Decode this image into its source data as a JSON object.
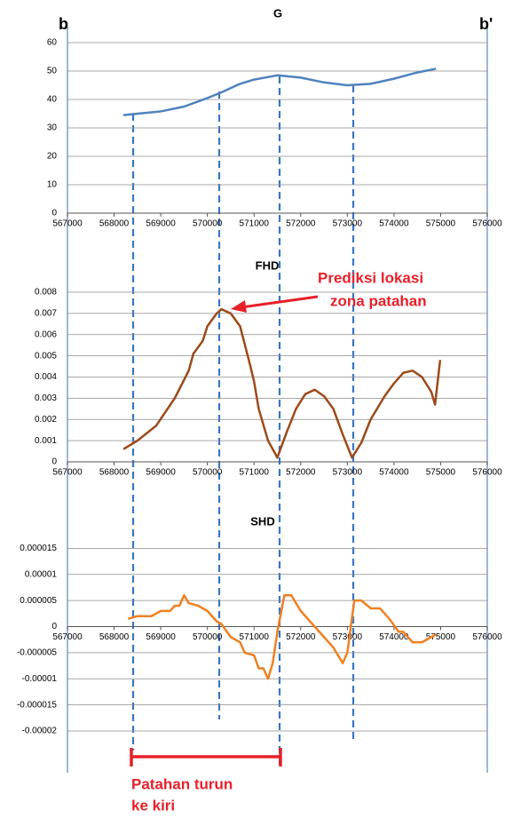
{
  "chart_data": [
    {
      "type": "line",
      "title": "G",
      "color": "#4f81bd",
      "x": [
        568200,
        568500,
        569000,
        569500,
        570000,
        570300,
        570700,
        571000,
        571500,
        572000,
        572500,
        573000,
        573500,
        574000,
        574500,
        574900
      ],
      "values": [
        34.5,
        35,
        35.8,
        37.5,
        40.5,
        42.5,
        45.5,
        47,
        48.5,
        47.7,
        46,
        45,
        45.5,
        47.3,
        49.5,
        50.8
      ],
      "xlim": [
        567000,
        576000
      ],
      "xticks": [
        567000,
        568000,
        569000,
        570000,
        571000,
        572000,
        573000,
        574000,
        575000,
        576000
      ],
      "ylim": [
        0,
        60
      ],
      "yticks": [
        0,
        10,
        20,
        30,
        40,
        50,
        60
      ],
      "grid": true
    },
    {
      "type": "line",
      "title": "FHD",
      "color": "#9c4a1a",
      "x": [
        568200,
        568500,
        568900,
        569300,
        569600,
        569700,
        569900,
        570000,
        570200,
        570300,
        570500,
        570700,
        570900,
        571000,
        571100,
        571300,
        571500,
        571700,
        571900,
        572100,
        572300,
        572500,
        572700,
        572900,
        573100,
        573300,
        573500,
        573800,
        574000,
        574200,
        574400,
        574600,
        574800,
        574880,
        574990
      ],
      "values": [
        0.0006,
        0.001,
        0.0017,
        0.003,
        0.0043,
        0.0051,
        0.0057,
        0.0064,
        0.007,
        0.0072,
        0.007,
        0.0064,
        0.0047,
        0.0038,
        0.0025,
        0.001,
        0.0002,
        0.0014,
        0.0025,
        0.0032,
        0.0034,
        0.0031,
        0.0025,
        0.0013,
        0.0002,
        0.0009,
        0.002,
        0.0031,
        0.0037,
        0.0042,
        0.0043,
        0.004,
        0.0033,
        0.0027,
        0.0048
      ],
      "xlim": [
        567000,
        576000
      ],
      "xticks": [
        567000,
        568000,
        569000,
        570000,
        571000,
        572000,
        573000,
        574000,
        575000,
        576000
      ],
      "ylim": [
        0,
        0.008
      ],
      "yticks": [
        0,
        0.001,
        0.002,
        0.003,
        0.004,
        0.005,
        0.006,
        0.007,
        0.008
      ],
      "grid": true
    },
    {
      "type": "line",
      "title": "SHD",
      "color": "#f08020",
      "x": [
        568300,
        568500,
        568800,
        569000,
        569200,
        569300,
        569400,
        569500,
        569600,
        569800,
        570000,
        570200,
        570300,
        570500,
        570700,
        570800,
        571000,
        571100,
        571200,
        571300,
        571400,
        571500,
        571650,
        571800,
        572000,
        572200,
        572500,
        572700,
        572900,
        573000,
        573150,
        573300,
        573500,
        573700,
        573900,
        574100,
        574200,
        574400,
        574600,
        574800,
        574900
      ],
      "values": [
        1.5e-06,
        2e-06,
        2e-06,
        3e-06,
        3e-06,
        4e-06,
        4e-06,
        6e-06,
        4.5e-06,
        4e-06,
        3e-06,
        1e-06,
        5e-07,
        -2e-06,
        -3e-06,
        -5e-06,
        -5.5e-06,
        -8e-06,
        -8e-06,
        -1e-05,
        -7e-06,
        -1e-06,
        6e-06,
        6e-06,
        3e-06,
        1e-06,
        -2e-06,
        -4e-06,
        -7e-06,
        -5e-06,
        5e-06,
        5e-06,
        3.5e-06,
        3.5e-06,
        1.5e-06,
        -1e-06,
        -1e-06,
        -3e-06,
        -3e-06,
        -2e-06,
        -1.5e-06
      ],
      "xlim": [
        567000,
        576000
      ],
      "xticks": [
        567000,
        568000,
        569000,
        570000,
        571000,
        572000,
        573000,
        574000,
        575000,
        576000
      ],
      "ylim": [
        -2e-05,
        2e-05
      ],
      "yticks": [
        -2e-05,
        -1.5e-05,
        -1e-05,
        -5e-06,
        0,
        5e-06,
        1e-05,
        1.5e-05
      ],
      "grid": true
    }
  ],
  "annotations": {
    "left_end": "b",
    "right_end": "b'",
    "prediction": [
      "Prediksi lokasi",
      "zona patahan"
    ],
    "fault": [
      "Patahan turun",
      "ke kiri"
    ]
  }
}
